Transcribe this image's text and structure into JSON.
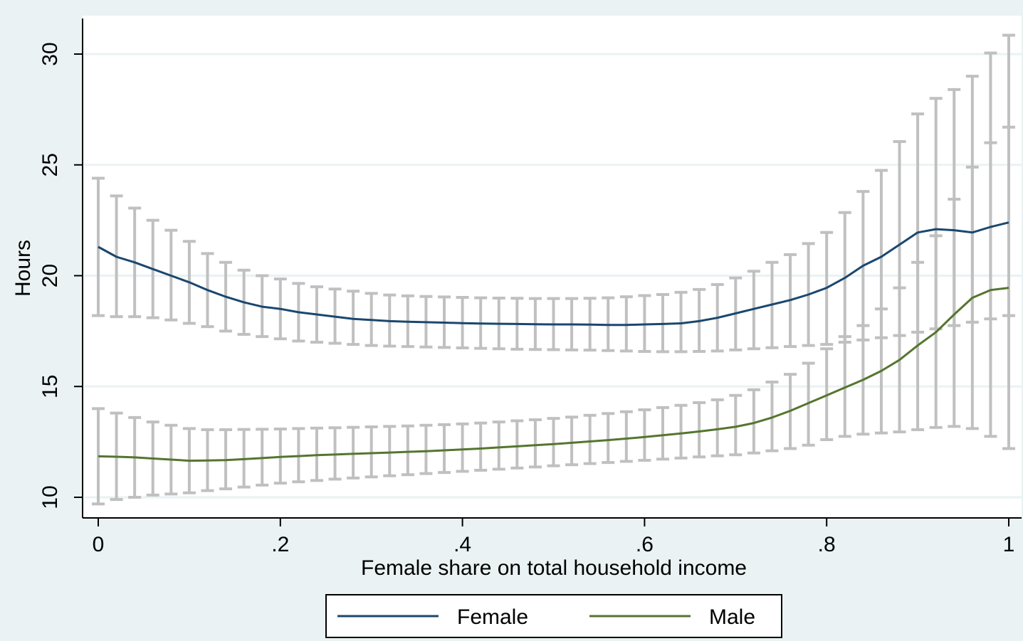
{
  "chart_data": {
    "type": "line",
    "xlabel": "Female share on total household income",
    "ylabel": "Hours",
    "xlim": [
      0,
      1
    ],
    "ylim": [
      9.5,
      31.5
    ],
    "x_ticks": [
      {
        "value": 0,
        "label": "0"
      },
      {
        "value": 0.2,
        "label": ".2"
      },
      {
        "value": 0.4,
        "label": ".4"
      },
      {
        "value": 0.6,
        "label": ".6"
      },
      {
        "value": 0.8,
        "label": ".8"
      },
      {
        "value": 1,
        "label": "1"
      }
    ],
    "y_ticks": [
      {
        "value": 10,
        "label": "10"
      },
      {
        "value": 15,
        "label": "15"
      },
      {
        "value": 20,
        "label": "20"
      },
      {
        "value": 25,
        "label": "25"
      },
      {
        "value": 30,
        "label": "30"
      }
    ],
    "grid": "horizontal",
    "legend_position": "bottom",
    "x": [
      0,
      0.02,
      0.04,
      0.06,
      0.08,
      0.1,
      0.12,
      0.14,
      0.16,
      0.18,
      0.2,
      0.22,
      0.24,
      0.26,
      0.28,
      0.3,
      0.32,
      0.34,
      0.36,
      0.38,
      0.4,
      0.42,
      0.44,
      0.46,
      0.48,
      0.5,
      0.52,
      0.54,
      0.56,
      0.58,
      0.6,
      0.62,
      0.64,
      0.66,
      0.68,
      0.7,
      0.72,
      0.74,
      0.76,
      0.78,
      0.8,
      0.82,
      0.84,
      0.86,
      0.88,
      0.9,
      0.92,
      0.94,
      0.96,
      0.98,
      1
    ],
    "series": [
      {
        "name": "Female",
        "color": "#1a476f",
        "values": [
          21.3,
          20.85,
          20.6,
          20.3,
          20.0,
          19.7,
          19.35,
          19.05,
          18.8,
          18.6,
          18.5,
          18.35,
          18.25,
          18.15,
          18.05,
          18.0,
          17.95,
          17.92,
          17.9,
          17.88,
          17.86,
          17.84,
          17.83,
          17.82,
          17.81,
          17.8,
          17.8,
          17.79,
          17.78,
          17.78,
          17.8,
          17.82,
          17.85,
          17.95,
          18.1,
          18.3,
          18.5,
          18.7,
          18.9,
          19.15,
          19.45,
          19.9,
          20.45,
          20.85,
          21.4,
          21.95,
          22.1,
          22.05,
          21.95,
          22.2,
          22.4
        ],
        "ci_lower": [
          18.2,
          18.15,
          18.15,
          18.1,
          18.0,
          17.85,
          17.7,
          17.5,
          17.35,
          17.25,
          17.15,
          17.05,
          17.0,
          16.95,
          16.9,
          16.85,
          16.82,
          16.8,
          16.78,
          16.76,
          16.74,
          16.72,
          16.7,
          16.68,
          16.67,
          16.66,
          16.65,
          16.64,
          16.62,
          16.6,
          16.58,
          16.57,
          16.57,
          16.58,
          16.6,
          16.65,
          16.7,
          16.75,
          16.8,
          16.85,
          16.9,
          17.0,
          17.1,
          17.2,
          17.3,
          17.45,
          17.6,
          17.75,
          17.9,
          18.05,
          18.2
        ],
        "ci_upper": [
          24.4,
          23.6,
          23.05,
          22.5,
          22.05,
          21.55,
          21.0,
          20.6,
          20.25,
          20.0,
          19.85,
          19.65,
          19.5,
          19.4,
          19.3,
          19.2,
          19.13,
          19.09,
          19.06,
          19.04,
          19.02,
          19.0,
          18.99,
          18.98,
          18.97,
          18.97,
          18.97,
          18.98,
          19.0,
          19.05,
          19.1,
          19.15,
          19.25,
          19.38,
          19.6,
          19.9,
          20.2,
          20.6,
          20.95,
          21.45,
          21.95,
          22.85,
          23.8,
          24.75,
          26.05,
          27.3,
          28.0,
          28.4,
          29.0,
          30.05,
          30.85
        ]
      },
      {
        "name": "Male",
        "color": "#55752f",
        "values": [
          11.85,
          11.83,
          11.8,
          11.75,
          11.7,
          11.65,
          11.66,
          11.68,
          11.72,
          11.77,
          11.82,
          11.86,
          11.9,
          11.93,
          11.96,
          11.99,
          12.02,
          12.05,
          12.08,
          12.12,
          12.16,
          12.2,
          12.25,
          12.3,
          12.35,
          12.4,
          12.46,
          12.52,
          12.58,
          12.65,
          12.72,
          12.8,
          12.88,
          12.97,
          13.07,
          13.18,
          13.35,
          13.6,
          13.9,
          14.25,
          14.6,
          14.95,
          15.3,
          15.7,
          16.2,
          16.85,
          17.45,
          18.25,
          19.0,
          19.35,
          19.45
        ],
        "ci_lower": [
          9.7,
          9.9,
          10.0,
          10.1,
          10.15,
          10.2,
          10.3,
          10.38,
          10.46,
          10.55,
          10.64,
          10.7,
          10.76,
          10.82,
          10.87,
          10.92,
          10.97,
          11.02,
          11.07,
          11.12,
          11.17,
          11.22,
          11.27,
          11.32,
          11.37,
          11.42,
          11.47,
          11.52,
          11.57,
          11.62,
          11.67,
          11.72,
          11.77,
          11.82,
          11.87,
          11.92,
          12.0,
          12.1,
          12.2,
          12.35,
          12.6,
          12.75,
          12.85,
          12.9,
          12.95,
          13.05,
          13.15,
          13.2,
          13.1,
          12.75,
          12.2
        ],
        "ci_upper": [
          14.0,
          13.8,
          13.6,
          13.4,
          13.25,
          13.1,
          13.05,
          13.05,
          13.06,
          13.07,
          13.08,
          13.1,
          13.12,
          13.14,
          13.16,
          13.18,
          13.2,
          13.22,
          13.25,
          13.28,
          13.31,
          13.35,
          13.4,
          13.45,
          13.5,
          13.56,
          13.62,
          13.7,
          13.78,
          13.86,
          13.95,
          14.05,
          14.15,
          14.27,
          14.4,
          14.6,
          14.85,
          15.2,
          15.55,
          16.05,
          16.7,
          17.25,
          17.75,
          18.5,
          19.45,
          20.6,
          21.8,
          23.45,
          24.9,
          26.0,
          26.7
        ]
      }
    ],
    "colors": {
      "plot_region_bg": "#ffffff",
      "outer_bg": "#eaf2f3",
      "grid": "#eaf2f3",
      "ci": "#c0c0c0"
    }
  }
}
